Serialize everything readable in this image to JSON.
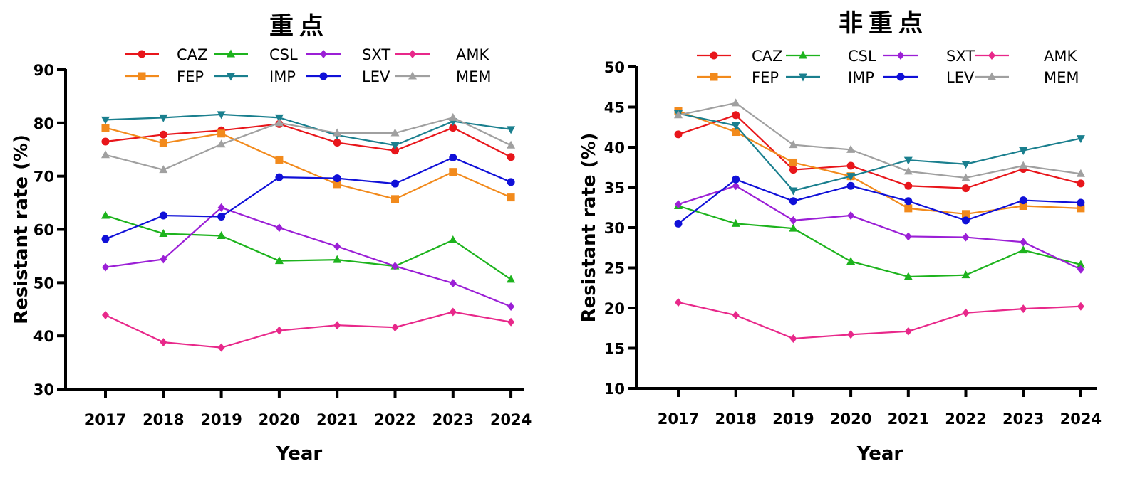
{
  "chart_data": [
    {
      "type": "line",
      "title": "重点",
      "xlabel": "Year",
      "ylabel": "Resistant rate (%)",
      "ylim": [
        30,
        90
      ],
      "yticks": [
        "30",
        "40",
        "50",
        "60",
        "70",
        "80",
        "90"
      ],
      "categories": [
        "2017",
        "2018",
        "2019",
        "2020",
        "2021",
        "2022",
        "2023",
        "2024"
      ],
      "grid": false,
      "legend": "top",
      "series": [
        {
          "name": "CAZ",
          "color": "#e8161b",
          "marker": "circle",
          "values": [
            76.5,
            77.8,
            78.6,
            79.8,
            76.3,
            74.8,
            79.1,
            73.6
          ]
        },
        {
          "name": "CSL",
          "color": "#1db31d",
          "marker": "triangle-up",
          "values": [
            62.6,
            59.2,
            58.8,
            54.1,
            54.3,
            53.1,
            58.0,
            50.6
          ]
        },
        {
          "name": "SXT",
          "color": "#9b1fd6",
          "marker": "diamond",
          "values": [
            52.9,
            54.4,
            64.1,
            60.3,
            56.8,
            53.1,
            49.9,
            45.5
          ]
        },
        {
          "name": "AMK",
          "color": "#e8288a",
          "marker": "diamond",
          "values": [
            43.9,
            38.8,
            37.8,
            41.0,
            42.0,
            41.6,
            44.5,
            42.6
          ]
        },
        {
          "name": "FEP",
          "color": "#f28a1c",
          "marker": "square",
          "values": [
            79.1,
            76.2,
            78.0,
            73.1,
            68.5,
            65.7,
            70.8,
            66.0
          ]
        },
        {
          "name": "IMP",
          "color": "#1a7f8e",
          "marker": "triangle-down",
          "values": [
            80.6,
            81.0,
            81.6,
            81.0,
            77.7,
            75.8,
            80.3,
            78.8
          ]
        },
        {
          "name": "LEV",
          "color": "#1010d8",
          "marker": "circle",
          "values": [
            58.2,
            62.6,
            62.4,
            69.8,
            69.6,
            68.6,
            73.5,
            68.9
          ]
        },
        {
          "name": "MEM",
          "color": "#a0a0a0",
          "marker": "triangle-up",
          "values": [
            74.0,
            71.2,
            76.0,
            80.0,
            78.1,
            78.1,
            81.0,
            75.8
          ]
        }
      ]
    },
    {
      "type": "line",
      "title": "非重点",
      "xlabel": "Year",
      "ylabel": "Resistant rate (%)",
      "ylim": [
        10,
        50
      ],
      "yticks": [
        "10",
        "15",
        "20",
        "25",
        "30",
        "35",
        "40",
        "45",
        "50"
      ],
      "categories": [
        "2017",
        "2018",
        "2019",
        "2020",
        "2021",
        "2022",
        "2023",
        "2024"
      ],
      "grid": false,
      "legend": "top",
      "series": [
        {
          "name": "CAZ",
          "color": "#e8161b",
          "marker": "circle",
          "values": [
            41.6,
            44.0,
            37.2,
            37.7,
            35.2,
            34.9,
            37.3,
            35.5
          ]
        },
        {
          "name": "CSL",
          "color": "#1db31d",
          "marker": "triangle-up",
          "values": [
            32.7,
            30.5,
            29.9,
            25.8,
            23.9,
            24.1,
            27.2,
            25.4
          ]
        },
        {
          "name": "SXT",
          "color": "#9b1fd6",
          "marker": "diamond",
          "values": [
            32.9,
            35.2,
            30.9,
            31.5,
            28.9,
            28.8,
            28.2,
            24.8
          ]
        },
        {
          "name": "AMK",
          "color": "#e8288a",
          "marker": "diamond",
          "values": [
            20.7,
            19.1,
            16.2,
            16.7,
            17.1,
            19.4,
            19.9,
            20.2
          ]
        },
        {
          "name": "FEP",
          "color": "#f28a1c",
          "marker": "square",
          "values": [
            44.5,
            41.9,
            38.1,
            36.4,
            32.4,
            31.7,
            32.7,
            32.4
          ]
        },
        {
          "name": "IMP",
          "color": "#1a7f8e",
          "marker": "triangle-down",
          "values": [
            44.2,
            42.7,
            34.6,
            36.4,
            38.4,
            37.9,
            39.6,
            41.1
          ]
        },
        {
          "name": "LEV",
          "color": "#1010d8",
          "marker": "circle",
          "values": [
            30.5,
            36.0,
            33.3,
            35.2,
            33.3,
            30.9,
            33.4,
            33.1
          ]
        },
        {
          "name": "MEM",
          "color": "#a0a0a0",
          "marker": "triangle-up",
          "values": [
            44.0,
            45.5,
            40.3,
            39.7,
            37.0,
            36.2,
            37.7,
            36.7
          ]
        }
      ]
    }
  ]
}
